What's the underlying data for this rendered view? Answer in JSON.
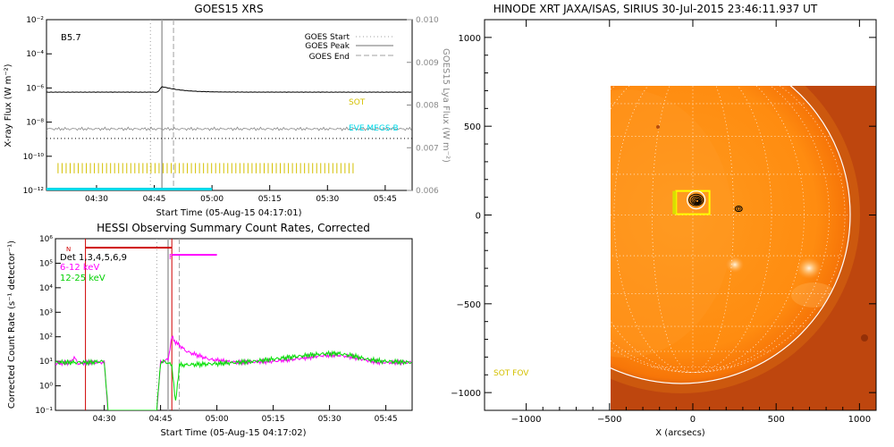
{
  "chart_data": [
    {
      "id": "goes",
      "type": "line",
      "title": "GOES15 XRS",
      "xlabel": "Start Time (05-Aug-15 04:17:01)",
      "ylabel": "X-ray Flux (W m⁻²)",
      "ylabel2": "GOES15 Lya Flux (W m⁻²)",
      "xlim": [
        "04:17",
        "05:52"
      ],
      "x_ticks": [
        "04:30",
        "04:45",
        "05:00",
        "05:15",
        "05:30",
        "05:45"
      ],
      "yscale": "log",
      "ylim": [
        1e-12,
        0.01
      ],
      "y_ticks": [
        "10⁻¹²",
        "10⁻¹⁰",
        "10⁻⁸",
        "10⁻⁶",
        "10⁻⁴",
        "10⁻²"
      ],
      "y2lim": [
        0.006,
        0.01
      ],
      "y2_ticks": [
        "0.006",
        "0.007",
        "0.008",
        "0.009",
        "0.010"
      ],
      "class_label": "B5.7",
      "legend": {
        "position": "top-right",
        "entries": [
          {
            "label": "GOES Start",
            "style": "dotted",
            "color": "#a0a0a0"
          },
          {
            "label": "GOES Peak",
            "style": "solid",
            "color": "#a0a0a0"
          },
          {
            "label": "GOES End",
            "style": "dashed",
            "color": "#a0a0a0"
          }
        ]
      },
      "markers": {
        "start": "04:44",
        "peak": "04:47",
        "end": "04:50"
      },
      "series": [
        {
          "color": "#000000",
          "values": "~5.7e-7 background, peak ~1.2e-6 at 04:47"
        },
        {
          "color": "#888888",
          "values": "~4e-9 background"
        },
        {
          "color": "#000000",
          "style": "dotted",
          "values": "~1.1e-9 flat"
        }
      ],
      "annotations": [
        {
          "text": "SOT",
          "color": "#d4c000"
        },
        {
          "text": "EVE MEGS-B",
          "color": "#00d8e8"
        }
      ],
      "sot_ticks": {
        "from": "04:20",
        "to": "05:37"
      },
      "eve_bar": {
        "from": "04:17",
        "to": "05:00"
      }
    },
    {
      "id": "hessi",
      "type": "line",
      "title": "HESSI Observing Summary Count Rates, Corrected",
      "xlabel": "Start Time (05-Aug-15 04:17:02)",
      "ylabel": "Corrected Count Rate (s⁻¹ detector⁻¹)",
      "xlim": [
        "04:17",
        "05:52"
      ],
      "x_ticks": [
        "04:30",
        "04:45",
        "05:00",
        "05:15",
        "05:30",
        "05:45"
      ],
      "yscale": "log",
      "ylim": [
        0.1,
        1000000.0
      ],
      "y_ticks": [
        "10⁻¹",
        "10⁰",
        "10¹",
        "10²",
        "10³",
        "10⁴",
        "10⁵",
        "10⁶"
      ],
      "legend": {
        "position": "top-left",
        "entries": [
          {
            "label": "Det 1,3,4,5,6,9",
            "color": "#000000"
          },
          {
            "label": "6-12 keV",
            "color": "#ff00ff"
          },
          {
            "label": "12-25 keV",
            "color": "#00e000"
          }
        ]
      },
      "flags": [
        {
          "text": "N",
          "color": "#d00000",
          "from": "04:25",
          "to": "04:48"
        },
        {
          "text": "F",
          "color": "#ff00ff",
          "from": "04:48",
          "to": "05:00"
        }
      ],
      "markers": {
        "start": "04:44",
        "peak": "04:47",
        "end": "04:50"
      },
      "series": [
        {
          "name": "6-12 keV",
          "color": "#ff00ff",
          "points": [
            [
              "04:17",
              8
            ],
            [
              "04:21",
              9
            ],
            [
              "04:22",
              15
            ],
            [
              "04:23",
              8
            ],
            [
              "04:26",
              9
            ],
            [
              "04:30",
              9
            ],
            [
              "04:31",
              0.1
            ],
            [
              "04:44",
              0.1
            ],
            [
              "04:45",
              9
            ],
            [
              "04:47",
              12
            ],
            [
              "04:48",
              100
            ],
            [
              "04:49",
              60
            ],
            [
              "04:52",
              25
            ],
            [
              "04:58",
              12
            ],
            [
              "05:05",
              9
            ],
            [
              "05:15",
              10
            ],
            [
              "05:22",
              13
            ],
            [
              "05:28",
              17
            ],
            [
              "05:32",
              18
            ],
            [
              "05:36",
              15
            ],
            [
              "05:40",
              11
            ],
            [
              "05:43",
              9
            ],
            [
              "05:52",
              9
            ]
          ]
        },
        {
          "name": "12-25 keV",
          "color": "#00e000",
          "points": [
            [
              "04:17",
              9
            ],
            [
              "04:26",
              9
            ],
            [
              "04:30",
              10
            ],
            [
              "04:31",
              0.1
            ],
            [
              "04:44",
              0.1
            ],
            [
              "04:45",
              9
            ],
            [
              "04:46",
              10
            ],
            [
              "04:48",
              7
            ],
            [
              "04:49",
              0.2
            ],
            [
              "04:50",
              7
            ],
            [
              "05:00",
              8
            ],
            [
              "05:10",
              10
            ],
            [
              "05:20",
              15
            ],
            [
              "05:28",
              20
            ],
            [
              "05:32",
              21
            ],
            [
              "05:36",
              17
            ],
            [
              "05:40",
              12
            ],
            [
              "05:44",
              10
            ],
            [
              "05:52",
              9
            ]
          ]
        }
      ]
    },
    {
      "id": "xrt",
      "type": "other",
      "title": "HINODE XRT JAXA/ISAS, SIRIUS 30-Jul-2015 23:46:11.937 UT",
      "xlabel": "X (arcsecs)",
      "xlim": [
        -1250,
        1100
      ],
      "ylim": [
        -1100,
        1100
      ],
      "x_ticks": [
        -1000,
        -500,
        0,
        500,
        1000
      ],
      "y_ticks": [
        -1000,
        -500,
        0,
        500,
        1000
      ],
      "solar_radius": 945,
      "image_extent": {
        "x": [
          -380,
          1100
        ],
        "y": [
          -1100,
          705
        ]
      },
      "sot_fov_label": "SOT FOV",
      "sot_fov_center": [
        0,
        70
      ],
      "contour_center": [
        20,
        85
      ],
      "small_contour_center": [
        275,
        35
      ]
    }
  ]
}
